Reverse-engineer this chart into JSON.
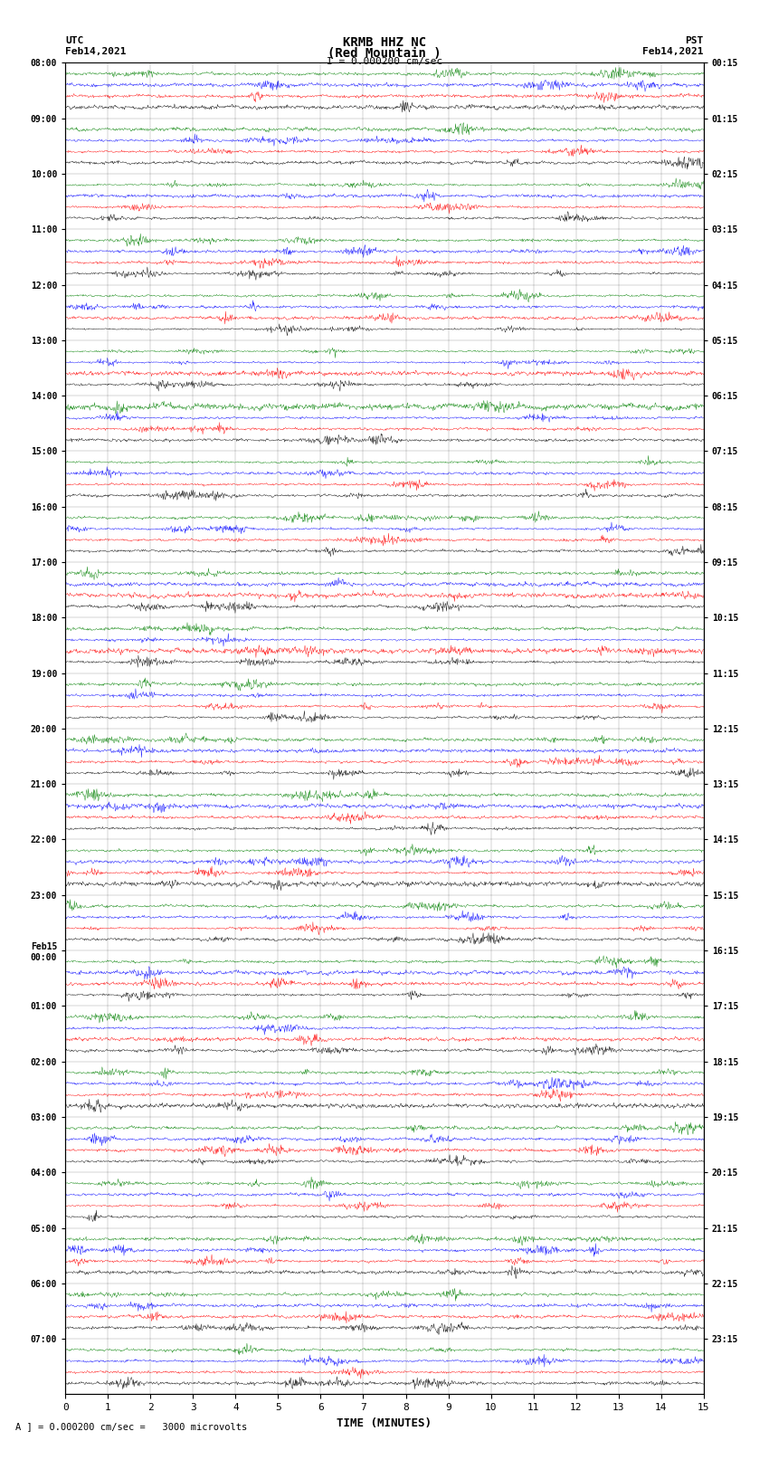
{
  "title_line1": "KRMB HHZ NC",
  "title_line2": "(Red Mountain )",
  "scale_text": "I = 0.000200 cm/sec",
  "left_label_line1": "UTC",
  "left_label_line2": "Feb14,2021",
  "right_label_line1": "PST",
  "right_label_line2": "Feb14,2021",
  "xlabel": "TIME (MINUTES)",
  "footer_text": "A ] = 0.000200 cm/sec =   3000 microvolts",
  "utc_times_left": [
    "08:00",
    "09:00",
    "10:00",
    "11:00",
    "12:00",
    "13:00",
    "14:00",
    "15:00",
    "16:00",
    "17:00",
    "18:00",
    "19:00",
    "20:00",
    "21:00",
    "22:00",
    "23:00",
    "Feb15\n00:00",
    "01:00",
    "02:00",
    "03:00",
    "04:00",
    "05:00",
    "06:00",
    "07:00"
  ],
  "pst_times_right": [
    "00:15",
    "01:15",
    "02:15",
    "03:15",
    "04:15",
    "05:15",
    "06:15",
    "07:15",
    "08:15",
    "09:15",
    "10:15",
    "11:15",
    "12:15",
    "13:15",
    "14:15",
    "15:15",
    "16:15",
    "17:15",
    "18:15",
    "19:15",
    "20:15",
    "21:15",
    "22:15",
    "23:15"
  ],
  "num_rows": 24,
  "traces_per_row": 4,
  "colors": [
    "black",
    "red",
    "blue",
    "green"
  ],
  "xlim": [
    0,
    15
  ],
  "background_color": "white",
  "line_width": 0.3,
  "amplitude_scale": 0.12
}
